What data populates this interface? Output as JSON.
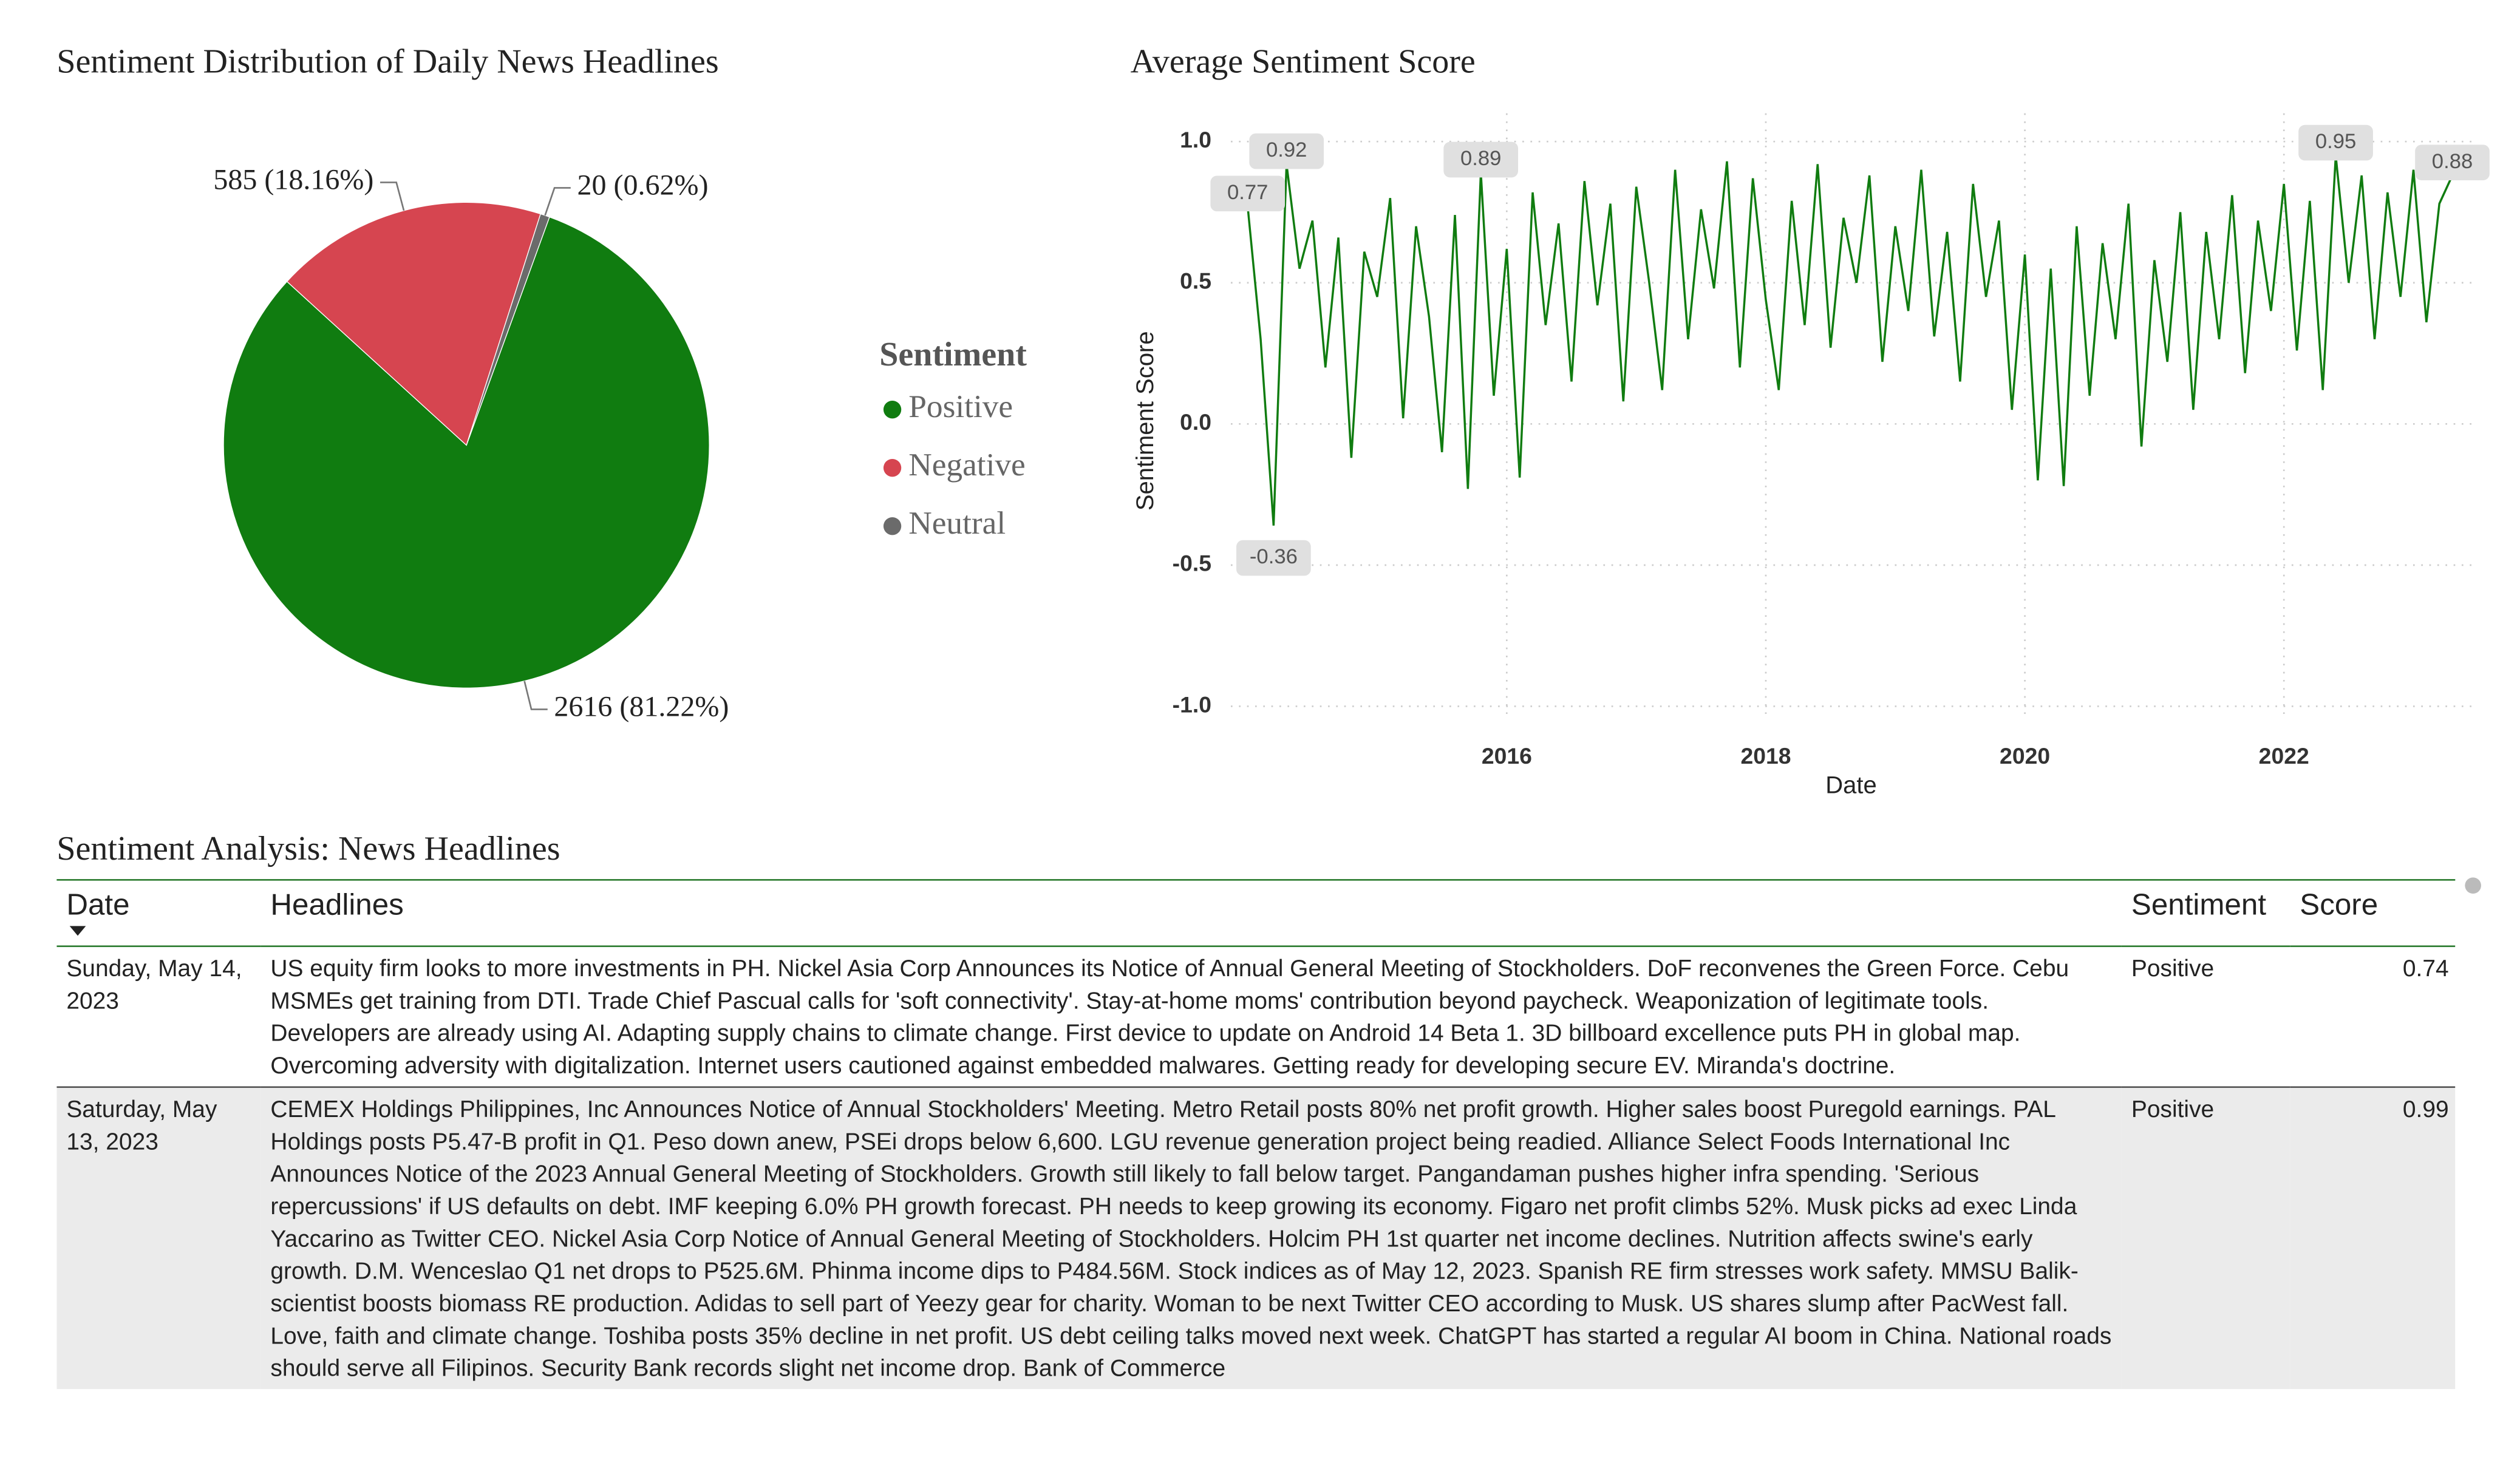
{
  "chart_data": [
    {
      "type": "pie",
      "title": "Sentiment Distribution of Daily News Headlines",
      "legend_title": "Sentiment",
      "categories": [
        "Positive",
        "Negative",
        "Neutral"
      ],
      "values": [
        2616,
        585,
        20
      ],
      "value_labels": [
        "2616 (81.22%)",
        "585 (18.16%)",
        "20 (0.62%)"
      ],
      "colors": [
        "#107c10",
        "#d64550",
        "#6b6b6b"
      ]
    },
    {
      "type": "line",
      "title": "Average Sentiment Score",
      "x_label": "Date",
      "y_label": "Sentiment Score",
      "x": [
        2014.0,
        2014.1,
        2014.2,
        2014.3,
        2014.4,
        2014.5,
        2014.6,
        2014.7,
        2014.8,
        2014.9,
        2015.0,
        2015.1,
        2015.2,
        2015.3,
        2015.4,
        2015.5,
        2015.6,
        2015.7,
        2015.8,
        2015.9,
        2016.0,
        2016.1,
        2016.2,
        2016.3,
        2016.4,
        2016.5,
        2016.6,
        2016.7,
        2016.8,
        2016.9,
        2017.0,
        2017.1,
        2017.2,
        2017.3,
        2017.4,
        2017.5,
        2017.6,
        2017.7,
        2017.8,
        2017.9,
        2018.0,
        2018.1,
        2018.2,
        2018.3,
        2018.4,
        2018.5,
        2018.6,
        2018.7,
        2018.8,
        2018.9,
        2019.0,
        2019.1,
        2019.2,
        2019.3,
        2019.4,
        2019.5,
        2019.6,
        2019.7,
        2019.8,
        2019.9,
        2020.0,
        2020.1,
        2020.2,
        2020.3,
        2020.4,
        2020.5,
        2020.6,
        2020.7,
        2020.8,
        2020.9,
        2021.0,
        2021.1,
        2021.2,
        2021.3,
        2021.4,
        2021.5,
        2021.6,
        2021.7,
        2021.8,
        2021.9,
        2022.0,
        2022.1,
        2022.2,
        2022.3,
        2022.4,
        2022.5,
        2022.6,
        2022.7,
        2022.8,
        2022.9,
        2023.0,
        2023.1,
        2023.2,
        2023.3
      ],
      "values": [
        0.77,
        0.3,
        -0.36,
        0.92,
        0.55,
        0.72,
        0.2,
        0.66,
        -0.12,
        0.61,
        0.45,
        0.8,
        0.02,
        0.7,
        0.38,
        -0.1,
        0.74,
        -0.23,
        0.89,
        0.1,
        0.62,
        -0.19,
        0.82,
        0.35,
        0.71,
        0.15,
        0.86,
        0.42,
        0.78,
        0.08,
        0.84,
        0.5,
        0.12,
        0.9,
        0.3,
        0.76,
        0.48,
        0.93,
        0.2,
        0.87,
        0.44,
        0.12,
        0.79,
        0.35,
        0.92,
        0.27,
        0.73,
        0.5,
        0.88,
        0.22,
        0.7,
        0.4,
        0.9,
        0.31,
        0.68,
        0.15,
        0.85,
        0.45,
        0.72,
        0.05,
        0.6,
        -0.2,
        0.55,
        -0.22,
        0.7,
        0.1,
        0.64,
        0.3,
        0.78,
        -0.08,
        0.58,
        0.22,
        0.75,
        0.05,
        0.68,
        0.3,
        0.81,
        0.18,
        0.72,
        0.4,
        0.85,
        0.26,
        0.79,
        0.12,
        0.95,
        0.5,
        0.88,
        0.3,
        0.82,
        0.45,
        0.9,
        0.36,
        0.78,
        0.88
      ],
      "value_labels": [
        "0.77",
        null,
        "-0.36",
        "0.92",
        null,
        null,
        null,
        null,
        null,
        null,
        null,
        null,
        null,
        null,
        null,
        null,
        null,
        null,
        "0.89",
        null,
        null,
        null,
        null,
        null,
        null,
        null,
        null,
        null,
        null,
        null,
        null,
        null,
        null,
        null,
        null,
        null,
        null,
        null,
        null,
        null,
        null,
        null,
        null,
        null,
        null,
        null,
        null,
        null,
        null,
        null,
        null,
        null,
        null,
        null,
        null,
        null,
        null,
        null,
        null,
        null,
        null,
        null,
        null,
        null,
        null,
        null,
        null,
        null,
        null,
        null,
        null,
        null,
        null,
        null,
        null,
        null,
        null,
        null,
        null,
        null,
        null,
        null,
        null,
        null,
        "0.95",
        null,
        null,
        null,
        null,
        null,
        null,
        null,
        null,
        "0.88"
      ],
      "color": "#107c10",
      "xlim": [
        2013.87,
        2023.46
      ],
      "xticks": [
        2016,
        2018,
        2020,
        2022
      ],
      "ylim": [
        -1.05,
        1.1
      ],
      "yticks": [
        {
          "value": -1,
          "label": "-1.0"
        },
        {
          "value": -0.5,
          "label": "-0.5"
        },
        {
          "value": 0,
          "label": "0.0"
        },
        {
          "value": 0.5,
          "label": "0.5"
        },
        {
          "value": 1,
          "label": "1.0"
        }
      ],
      "grid": true
    }
  ],
  "table": {
    "title": "Sentiment Analysis: News Headlines",
    "columns": [
      "Date",
      "Headlines",
      "Sentiment",
      "Score"
    ],
    "rows": [
      [
        "Sunday, May 14, 2023",
        "US equity firm looks to more investments in PH. Nickel Asia Corp Announces its Notice of Annual General Meeting of Stockholders. DoF reconvenes the Green Force. Cebu MSMEs get training from DTI. Trade Chief Pascual calls for 'soft connectivity'. Stay-at-home moms' contribution beyond paycheck. Weaponization of legitimate tools. Developers are already using AI. Adapting supply chains to climate change. First device to update on Android 14 Beta 1. 3D billboard excellence puts PH in global map. Overcoming adversity with digitalization. Internet users cautioned against embedded malwares. Getting ready for developing secure EV. Miranda's doctrine.",
        "Positive",
        0.74
      ],
      [
        "Saturday, May 13, 2023",
        "CEMEX Holdings Philippines, Inc Announces Notice of Annual Stockholders' Meeting. Metro Retail posts 80% net profit growth. Higher sales boost Puregold earnings. PAL Holdings posts P5.47-B profit in Q1. Peso down anew, PSEi drops below 6,600. LGU revenue generation project being readied. Alliance Select Foods International Inc Announces Notice of the 2023 Annual General Meeting of Stockholders. Growth still likely to fall below target. Pangandaman pushes higher infra spending. 'Serious repercussions' if US defaults on debt. IMF keeping 6.0% PH growth forecast. PH needs to keep growing its economy. Figaro net profit climbs 52%. Musk picks ad exec Linda Yaccarino as Twitter CEO. Nickel Asia Corp Notice of Annual General Meeting of Stockholders. Holcim PH 1st quarter net income declines. Nutrition affects swine's early growth. D.M. Wenceslao Q1 net drops to P525.6M. Phinma income dips to P484.56M. Stock indices as of May 12, 2023. Spanish RE firm stresses work safety. MMSU Balik-scientist boosts biomass RE production. Adidas to sell part of Yeezy gear for charity. Woman to be next Twitter CEO according to Musk. US shares slump after PacWest fall. Love, faith and climate change. Toshiba posts 35% decline in net profit. US debt ceiling talks moved next week. ChatGPT has started a regular AI boom in China. National roads should serve all Filipinos. Security Bank records slight net income drop. Bank of Commerce",
        "Positive",
        0.99
      ]
    ]
  }
}
